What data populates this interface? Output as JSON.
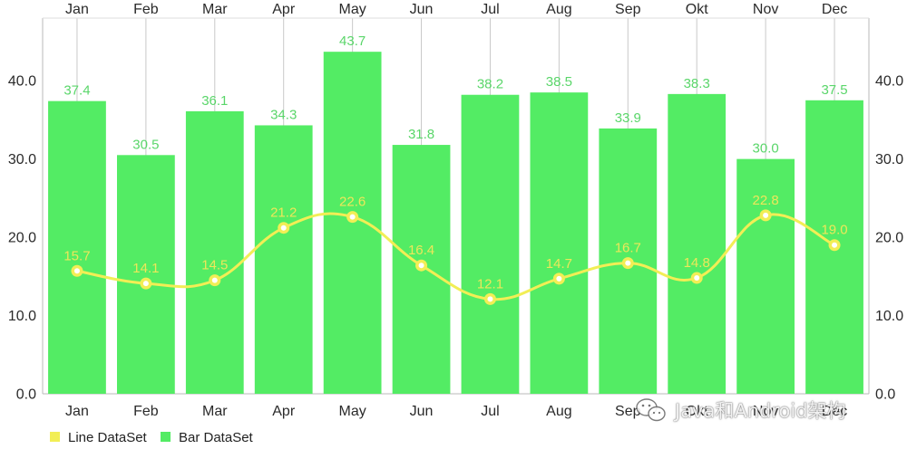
{
  "chart_data": {
    "type": "bar",
    "categories": [
      "Jan",
      "Feb",
      "Mar",
      "Apr",
      "May",
      "Jun",
      "Jul",
      "Aug",
      "Sep",
      "Okt",
      "Nov",
      "Dec"
    ],
    "series": [
      {
        "name": "Line DataSet",
        "type": "line",
        "color": "#F2EE55",
        "label_color": "#EDE75A",
        "values": [
          15.7,
          14.1,
          14.5,
          21.2,
          22.6,
          16.4,
          12.1,
          14.7,
          16.7,
          14.8,
          22.8,
          19.0
        ]
      },
      {
        "name": "Bar DataSet",
        "type": "bar",
        "color": "#53EC64",
        "label_color": "#5AD66A",
        "values": [
          37.4,
          30.5,
          36.1,
          34.3,
          43.7,
          31.8,
          38.2,
          38.5,
          33.9,
          38.3,
          30.0,
          37.5
        ]
      }
    ],
    "ylim": [
      0,
      48
    ],
    "yticks": [
      0,
      10,
      20,
      30,
      40
    ],
    "x_axis_position": "top-and-bottom",
    "y_axis_position": "left-and-right",
    "grid": {
      "vertical": true,
      "horizontal": false
    },
    "line_style": "smooth",
    "data_labels": true,
    "legend": {
      "placement": "bottom-left"
    }
  },
  "watermark": {
    "text": "Java和Android架构",
    "icon": "wechat-icon"
  }
}
